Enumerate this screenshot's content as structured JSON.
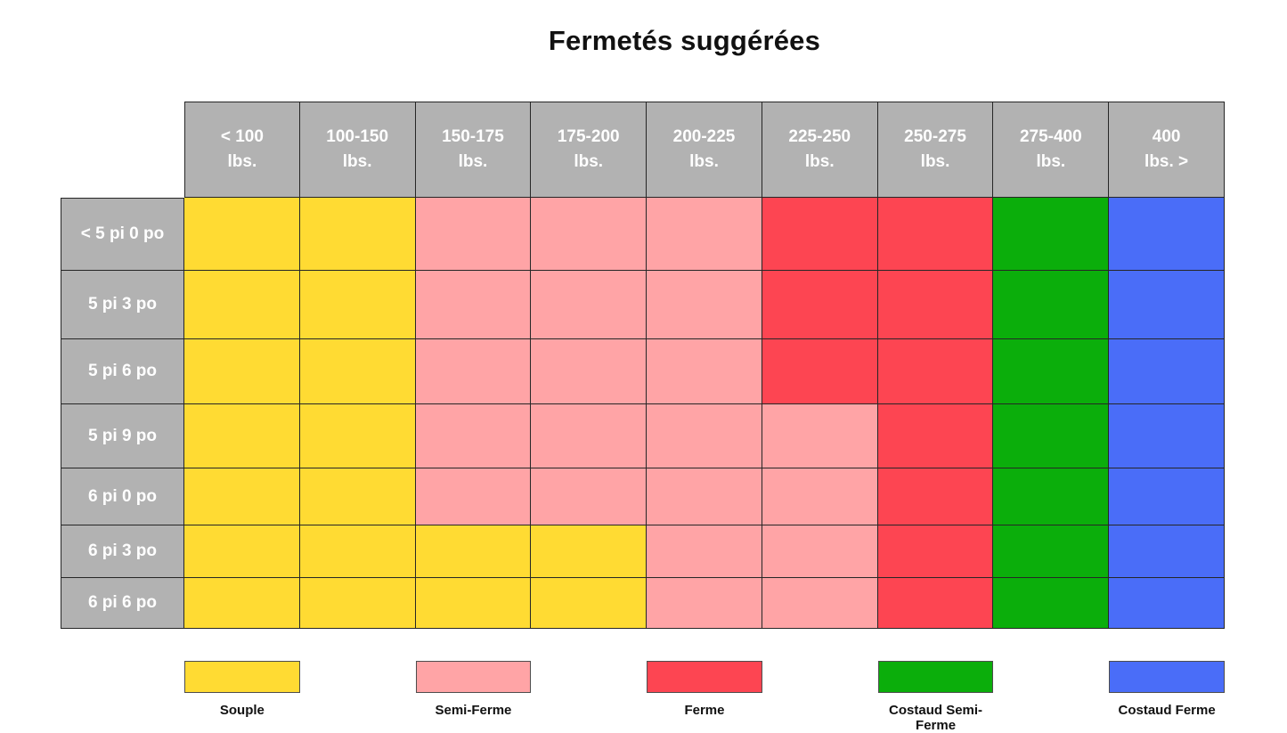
{
  "title": "Fermetés suggérées",
  "palette": {
    "souple": "#FFDB33",
    "semi_ferme": "#FFA4A6",
    "ferme": "#FD4552",
    "costaud_semi_ferme": "#0BAE0B",
    "costaud_ferme": "#4A6DF8",
    "header_bg": "#B2B2B2",
    "header_text": "#FFFFFF",
    "grid_line": "#262626"
  },
  "chart_data": {
    "type": "heatmap",
    "title": "Fermetés suggérées",
    "xlabel": "",
    "ylabel": "",
    "legend_position": "bottom",
    "grid": "on",
    "x_categories": [
      "< 100\nlbs.",
      "100-150\nlbs.",
      "150-175\nlbs.",
      "175-200\nlbs.",
      "200-225\nlbs.",
      "225-250\nlbs.",
      "250-275\nlbs.",
      "275-400\nlbs.",
      "400\nlbs. >"
    ],
    "y_categories": [
      "< 5 pi 0 po",
      "5 pi 3 po",
      "5 pi 6 po",
      "5 pi 9 po",
      "6 pi 0 po",
      "6 pi 3 po",
      "6 pi 6 po"
    ],
    "values": [
      [
        "souple",
        "souple",
        "semi_ferme",
        "semi_ferme",
        "semi_ferme",
        "ferme",
        "ferme",
        "costaud_semi_ferme",
        "costaud_ferme"
      ],
      [
        "souple",
        "souple",
        "semi_ferme",
        "semi_ferme",
        "semi_ferme",
        "ferme",
        "ferme",
        "costaud_semi_ferme",
        "costaud_ferme"
      ],
      [
        "souple",
        "souple",
        "semi_ferme",
        "semi_ferme",
        "semi_ferme",
        "ferme",
        "ferme",
        "costaud_semi_ferme",
        "costaud_ferme"
      ],
      [
        "souple",
        "souple",
        "semi_ferme",
        "semi_ferme",
        "semi_ferme",
        "semi_ferme",
        "ferme",
        "costaud_semi_ferme",
        "costaud_ferme"
      ],
      [
        "souple",
        "souple",
        "semi_ferme",
        "semi_ferme",
        "semi_ferme",
        "semi_ferme",
        "ferme",
        "costaud_semi_ferme",
        "costaud_ferme"
      ],
      [
        "souple",
        "souple",
        "souple",
        "souple",
        "semi_ferme",
        "semi_ferme",
        "ferme",
        "costaud_semi_ferme",
        "costaud_ferme"
      ],
      [
        "souple",
        "souple",
        "souple",
        "souple",
        "semi_ferme",
        "semi_ferme",
        "ferme",
        "costaud_semi_ferme",
        "costaud_ferme"
      ]
    ],
    "legend": [
      {
        "label": "Souple",
        "key": "souple"
      },
      {
        "label": "Semi-Ferme",
        "key": "semi_ferme"
      },
      {
        "label": "Ferme",
        "key": "ferme"
      },
      {
        "label": "Costaud Semi-Ferme",
        "key": "costaud_semi_ferme"
      },
      {
        "label": "Costaud Ferme",
        "key": "costaud_ferme"
      }
    ]
  }
}
